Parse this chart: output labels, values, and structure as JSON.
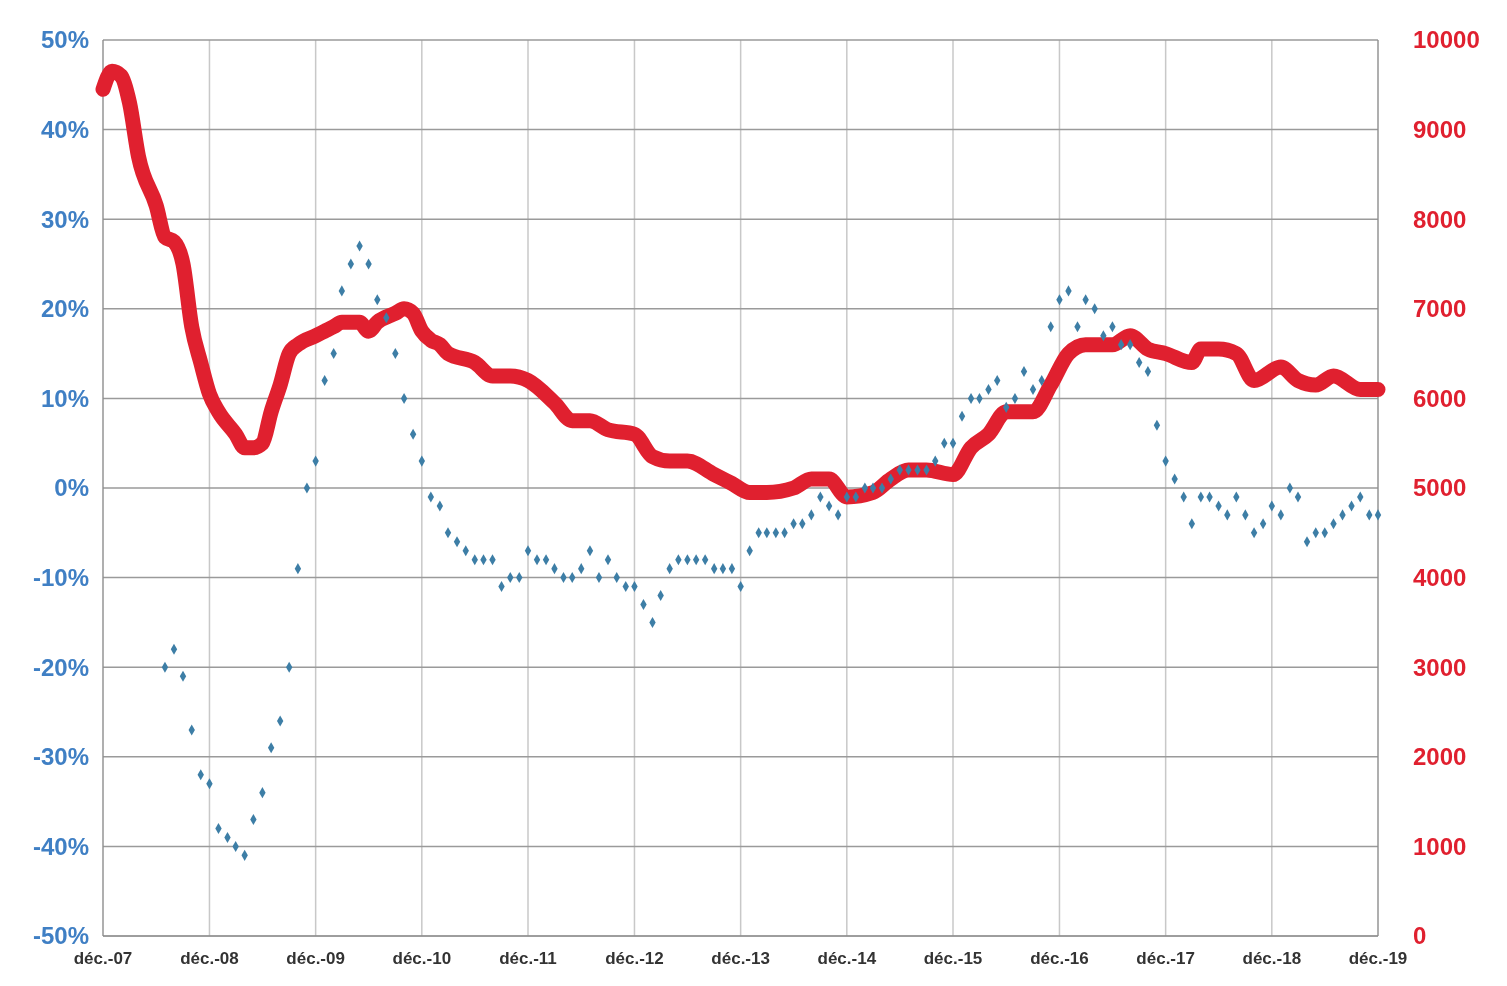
{
  "chart_data": {
    "type": "line",
    "xlim": [
      "2007-12",
      "2019-12"
    ],
    "xticks": [
      {
        "value": "2007-12",
        "label": "déc.-07"
      },
      {
        "value": "2008-12",
        "label": "déc.-08"
      },
      {
        "value": "2009-12",
        "label": "déc.-09"
      },
      {
        "value": "2010-12",
        "label": "déc.-10"
      },
      {
        "value": "2011-12",
        "label": "déc.-11"
      },
      {
        "value": "2012-12",
        "label": "déc.-12"
      },
      {
        "value": "2013-12",
        "label": "déc.-13"
      },
      {
        "value": "2014-12",
        "label": "déc.-14"
      },
      {
        "value": "2015-12",
        "label": "déc.-15"
      },
      {
        "value": "2016-12",
        "label": "déc.-16"
      },
      {
        "value": "2017-12",
        "label": "déc.-17"
      },
      {
        "value": "2018-12",
        "label": "déc.-18"
      },
      {
        "value": "2019-12",
        "label": "déc.-19"
      }
    ],
    "ylim": [
      -50,
      50
    ],
    "yticks": [
      {
        "value": 50,
        "label": "50%"
      },
      {
        "value": 40,
        "label": "40%"
      },
      {
        "value": 30,
        "label": "30%"
      },
      {
        "value": 20,
        "label": "20%"
      },
      {
        "value": 10,
        "label": "10%"
      },
      {
        "value": 0,
        "label": "0%"
      },
      {
        "value": -10,
        "label": "-10%"
      },
      {
        "value": -20,
        "label": "-20%"
      },
      {
        "value": -30,
        "label": "-30%"
      },
      {
        "value": -40,
        "label": "-40%"
      },
      {
        "value": -50,
        "label": "-50%"
      }
    ],
    "y2lim": [
      0,
      10000
    ],
    "y2ticks": [
      0,
      1000,
      2000,
      3000,
      4000,
      5000,
      6000,
      7000,
      8000,
      9000,
      10000
    ],
    "grid": true,
    "series": [
      {
        "type": "scatter",
        "marker": "diamond",
        "color": "#3d7ea6",
        "x": [
          "2008-07",
          "2008-08",
          "2008-09",
          "2008-10",
          "2008-11",
          "2008-12",
          "2009-01",
          "2009-02",
          "2009-03",
          "2009-04",
          "2009-05",
          "2009-06",
          "2009-07",
          "2009-08",
          "2009-09",
          "2009-10",
          "2009-11",
          "2009-12",
          "2010-01",
          "2010-02",
          "2010-03",
          "2010-04",
          "2010-05",
          "2010-06",
          "2010-07",
          "2010-08",
          "2010-09",
          "2010-10",
          "2010-11",
          "2010-12",
          "2011-01",
          "2011-02",
          "2011-03",
          "2011-04",
          "2011-05",
          "2011-06",
          "2011-07",
          "2011-08",
          "2011-09",
          "2011-10",
          "2011-11",
          "2011-12",
          "2012-01",
          "2012-02",
          "2012-03",
          "2012-04",
          "2012-05",
          "2012-06",
          "2012-07",
          "2012-08",
          "2012-09",
          "2012-10",
          "2012-11",
          "2012-12",
          "2013-01",
          "2013-02",
          "2013-03",
          "2013-04",
          "2013-05",
          "2013-06",
          "2013-07",
          "2013-08",
          "2013-09",
          "2013-10",
          "2013-11",
          "2013-12",
          "2014-01",
          "2014-02",
          "2014-03",
          "2014-04",
          "2014-05",
          "2014-06",
          "2014-07",
          "2014-08",
          "2014-09",
          "2014-10",
          "2014-11",
          "2014-12",
          "2015-01",
          "2015-02",
          "2015-03",
          "2015-04",
          "2015-05",
          "2015-06",
          "2015-07",
          "2015-08",
          "2015-09",
          "2015-10",
          "2015-11",
          "2015-12",
          "2016-01",
          "2016-02",
          "2016-03",
          "2016-04",
          "2016-05",
          "2016-06",
          "2016-07",
          "2016-08",
          "2016-09",
          "2016-10",
          "2016-11",
          "2016-12",
          "2017-01",
          "2017-02",
          "2017-03",
          "2017-04",
          "2017-05",
          "2017-06",
          "2017-07",
          "2017-08",
          "2017-09",
          "2017-10",
          "2017-11",
          "2017-12",
          "2018-01",
          "2018-02",
          "2018-03",
          "2018-04",
          "2018-05",
          "2018-06",
          "2018-07",
          "2018-08",
          "2018-09",
          "2018-10",
          "2018-11",
          "2018-12",
          "2019-01",
          "2019-02",
          "2019-03",
          "2019-04",
          "2019-05",
          "2019-06",
          "2019-07",
          "2019-08",
          "2019-09",
          "2019-10",
          "2019-11",
          "2019-12"
        ],
        "values": [
          -20,
          -18,
          -21,
          -27,
          -32,
          -33,
          -38,
          -39,
          -40,
          -41,
          -37,
          -34,
          -29,
          -26,
          -20,
          -9,
          0,
          3,
          12,
          15,
          22,
          25,
          27,
          25,
          21,
          19,
          15,
          10,
          6,
          3,
          -1,
          -2,
          -5,
          -6,
          -7,
          -8,
          -8,
          -8,
          -11,
          -10,
          -10,
          -7,
          -8,
          -8,
          -9,
          -10,
          -10,
          -9,
          -7,
          -10,
          -8,
          -10,
          -11,
          -11,
          -13,
          -15,
          -12,
          -9,
          -8,
          -8,
          -8,
          -8,
          -9,
          -9,
          -9,
          -11,
          -7,
          -5,
          -5,
          -5,
          -5,
          -4,
          -4,
          -3,
          -1,
          -2,
          -3,
          -1,
          -1,
          0,
          0,
          0,
          1,
          2,
          2,
          2,
          2,
          3,
          5,
          5,
          8,
          10,
          10,
          11,
          12,
          9,
          10,
          13,
          11,
          12,
          18,
          21,
          22,
          18,
          21,
          20,
          17,
          18,
          16,
          16,
          14,
          13,
          7,
          3,
          1,
          -1,
          -4,
          -1,
          -1,
          -2,
          -3,
          -1,
          -3,
          -5,
          -4,
          -2,
          -3,
          0,
          -1,
          -6,
          -5,
          -5,
          -4,
          -3,
          -2,
          -1,
          -3,
          -3
        ]
      },
      {
        "type": "line",
        "axis": "y2",
        "marker": "none",
        "color": "#e0202f",
        "x": [
          "2007-12",
          "2008-01",
          "2008-02",
          "2008-03",
          "2008-04",
          "2008-06",
          "2008-07",
          "2008-08",
          "2008-09",
          "2008-10",
          "2008-11",
          "2008-12",
          "2009-01",
          "2009-03",
          "2009-04",
          "2009-05",
          "2009-06",
          "2009-07",
          "2009-08",
          "2009-09",
          "2009-10",
          "2009-12",
          "2010-01",
          "2010-02",
          "2010-03",
          "2010-04",
          "2010-05",
          "2010-06",
          "2010-07",
          "2010-09",
          "2010-10",
          "2010-11",
          "2010-12",
          "2011-01",
          "2011-02",
          "2011-03",
          "2011-06",
          "2011-08",
          "2011-10",
          "2011-12",
          "2012-03",
          "2012-05",
          "2012-07",
          "2012-09",
          "2012-12",
          "2013-02",
          "2013-04",
          "2013-06",
          "2013-09",
          "2013-11",
          "2014-01",
          "2014-03",
          "2014-06",
          "2014-08",
          "2014-10",
          "2014-12",
          "2015-03",
          "2015-05",
          "2015-07",
          "2015-09",
          "2015-12",
          "2016-02",
          "2016-04",
          "2016-06",
          "2016-09",
          "2016-11",
          "2017-01",
          "2017-03",
          "2017-06",
          "2017-08",
          "2017-10",
          "2017-12",
          "2018-03",
          "2018-04",
          "2018-06",
          "2018-08",
          "2018-10",
          "2019-01",
          "2019-03",
          "2019-05",
          "2019-07",
          "2019-10",
          "2019-12"
        ],
        "values": [
          9450,
          9650,
          9600,
          9300,
          8700,
          8150,
          7800,
          7750,
          7500,
          6800,
          6400,
          6050,
          5850,
          5600,
          5450,
          5450,
          5500,
          5850,
          6150,
          6500,
          6600,
          6700,
          6750,
          6800,
          6850,
          6850,
          6850,
          6750,
          6850,
          6950,
          7000,
          6950,
          6750,
          6650,
          6600,
          6500,
          6400,
          6250,
          6250,
          6200,
          5950,
          5750,
          5750,
          5650,
          5600,
          5350,
          5300,
          5300,
          5150,
          5050,
          4950,
          4950,
          5000,
          5100,
          5100,
          4900,
          4950,
          5100,
          5200,
          5200,
          5150,
          5450,
          5600,
          5850,
          5850,
          6150,
          6500,
          6600,
          6600,
          6700,
          6550,
          6500,
          6400,
          6550,
          6550,
          6500,
          6200,
          6350,
          6200,
          6150,
          6250,
          6100,
          6100
        ]
      }
    ]
  }
}
